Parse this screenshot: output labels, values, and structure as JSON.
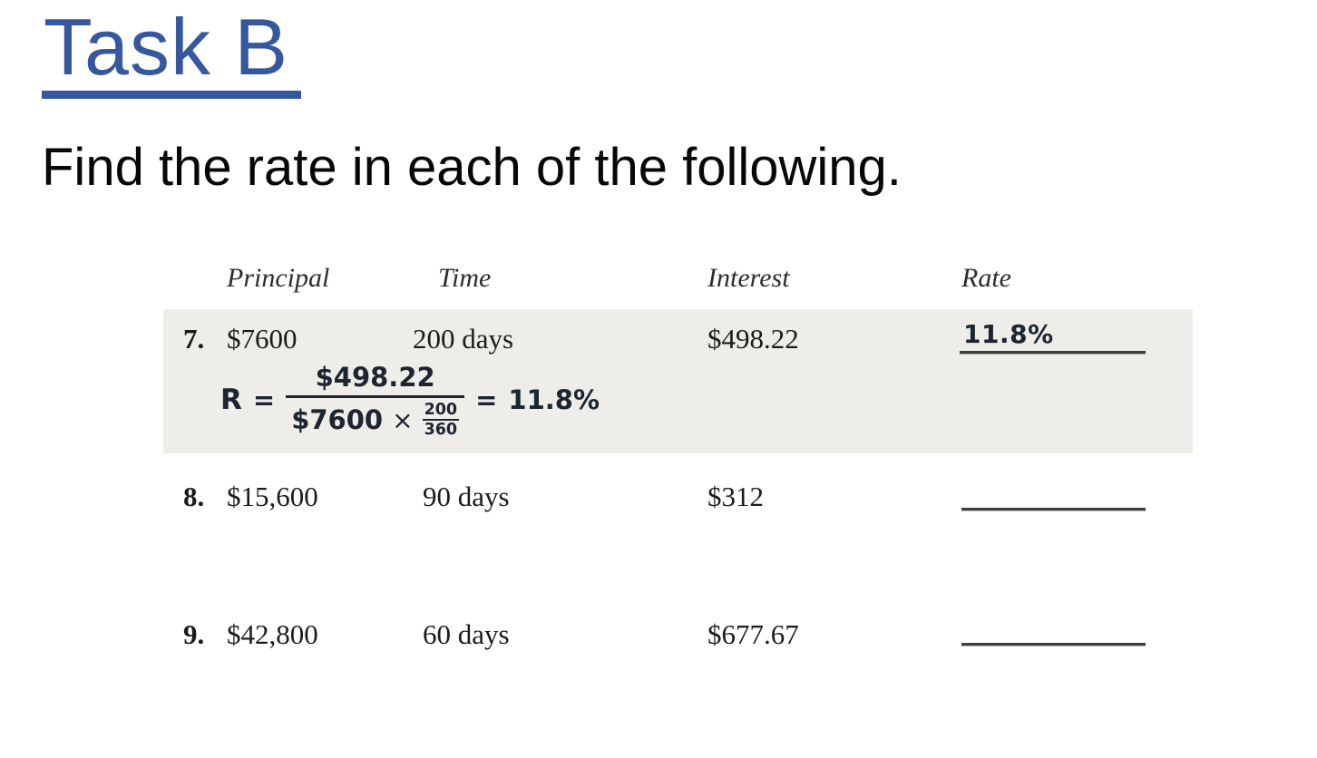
{
  "title": "Task B",
  "subtitle": "Find the rate in each of the following.",
  "table": {
    "headers": [
      "Principal",
      "Time",
      "Interest",
      "Rate"
    ],
    "rows": [
      {
        "num": "7.",
        "principal": "$7600",
        "time": "200 days",
        "interest": "$498.22",
        "rate_answer": "11.8%"
      },
      {
        "num": "8.",
        "principal": "$15,600",
        "time": "90 days",
        "interest": "$312",
        "rate_answer": ""
      },
      {
        "num": "9.",
        "principal": "$42,800",
        "time": "60 days",
        "interest": "$677.67",
        "rate_answer": ""
      }
    ]
  },
  "solution": {
    "lhs": "R",
    "equals": "=",
    "numerator": "$498.22",
    "denominator_principal": "$7600",
    "times_sign": "×",
    "inner_fraction_numerator": "200",
    "inner_fraction_denominator": "360",
    "result_equals": "=",
    "result": "11.8%"
  },
  "colors": {
    "title_blue": "#35589E",
    "highlight_gray": "#EEEDE9",
    "ink": "#1d2531"
  }
}
